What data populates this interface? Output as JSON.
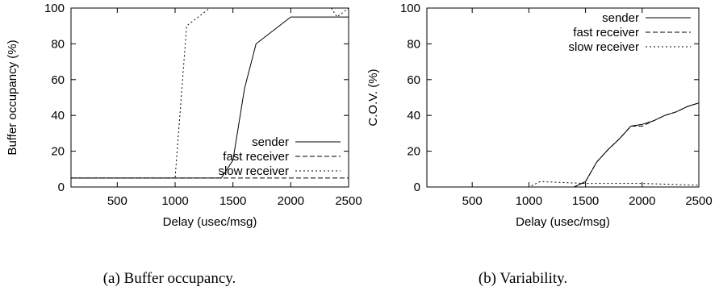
{
  "chart_data": [
    {
      "type": "line",
      "title": "",
      "caption": "(a) Buffer occupancy.",
      "xlabel": "Delay (usec/msg)",
      "ylabel": "Buffer occupancy (%)",
      "xlim": [
        100,
        2500
      ],
      "ylim": [
        0,
        100
      ],
      "xticks": [
        500,
        1000,
        1500,
        2000,
        2500
      ],
      "yticks": [
        0,
        20,
        40,
        60,
        80,
        100
      ],
      "grid": false,
      "legend": "bottom-right",
      "series": [
        {
          "name": "sender",
          "style": "solid",
          "x": [
            100,
            1000,
            1400,
            1500,
            1600,
            1700,
            2000,
            2500
          ],
          "y": [
            5,
            5,
            5,
            15,
            55,
            80,
            95,
            95
          ]
        },
        {
          "name": "fast receiver",
          "style": "dashed",
          "x": [
            100,
            2500
          ],
          "y": [
            5,
            5
          ]
        },
        {
          "name": "slow receiver",
          "style": "dotted",
          "x": [
            100,
            1000,
            1100,
            1300,
            2350,
            2400,
            2500
          ],
          "y": [
            5,
            5,
            90,
            100,
            100,
            95,
            100
          ]
        }
      ]
    },
    {
      "type": "line",
      "title": "",
      "caption": "(b) Variability.",
      "xlabel": "Delay (usec/msg)",
      "ylabel": "C.O.V. (%)",
      "xlim": [
        100,
        2500
      ],
      "ylim": [
        0,
        100
      ],
      "xticks": [
        500,
        1000,
        1500,
        2000,
        2500
      ],
      "yticks": [
        0,
        20,
        40,
        60,
        80,
        100
      ],
      "grid": false,
      "legend": "top-right",
      "series": [
        {
          "name": "sender",
          "style": "solid",
          "x": [
            100,
            1400,
            1500,
            1600,
            1700,
            1800,
            1900,
            2000,
            2100,
            2200,
            2300,
            2400,
            2500
          ],
          "y": [
            0,
            0,
            3,
            14,
            21,
            27,
            34,
            35,
            37,
            40,
            42,
            45,
            47
          ]
        },
        {
          "name": "fast receiver",
          "style": "dashed",
          "x": [
            100,
            1400,
            1500,
            1600,
            1700,
            1800,
            1900,
            2000,
            2100,
            2200,
            2300,
            2400,
            2500
          ],
          "y": [
            0,
            0,
            3,
            14,
            21,
            27,
            34,
            34,
            37,
            40,
            42,
            45,
            47
          ]
        },
        {
          "name": "slow receiver",
          "style": "dotted",
          "x": [
            100,
            1000,
            1100,
            1500,
            1800,
            2000,
            2500
          ],
          "y": [
            0,
            0,
            3,
            2,
            2,
            2,
            1
          ]
        }
      ]
    }
  ]
}
